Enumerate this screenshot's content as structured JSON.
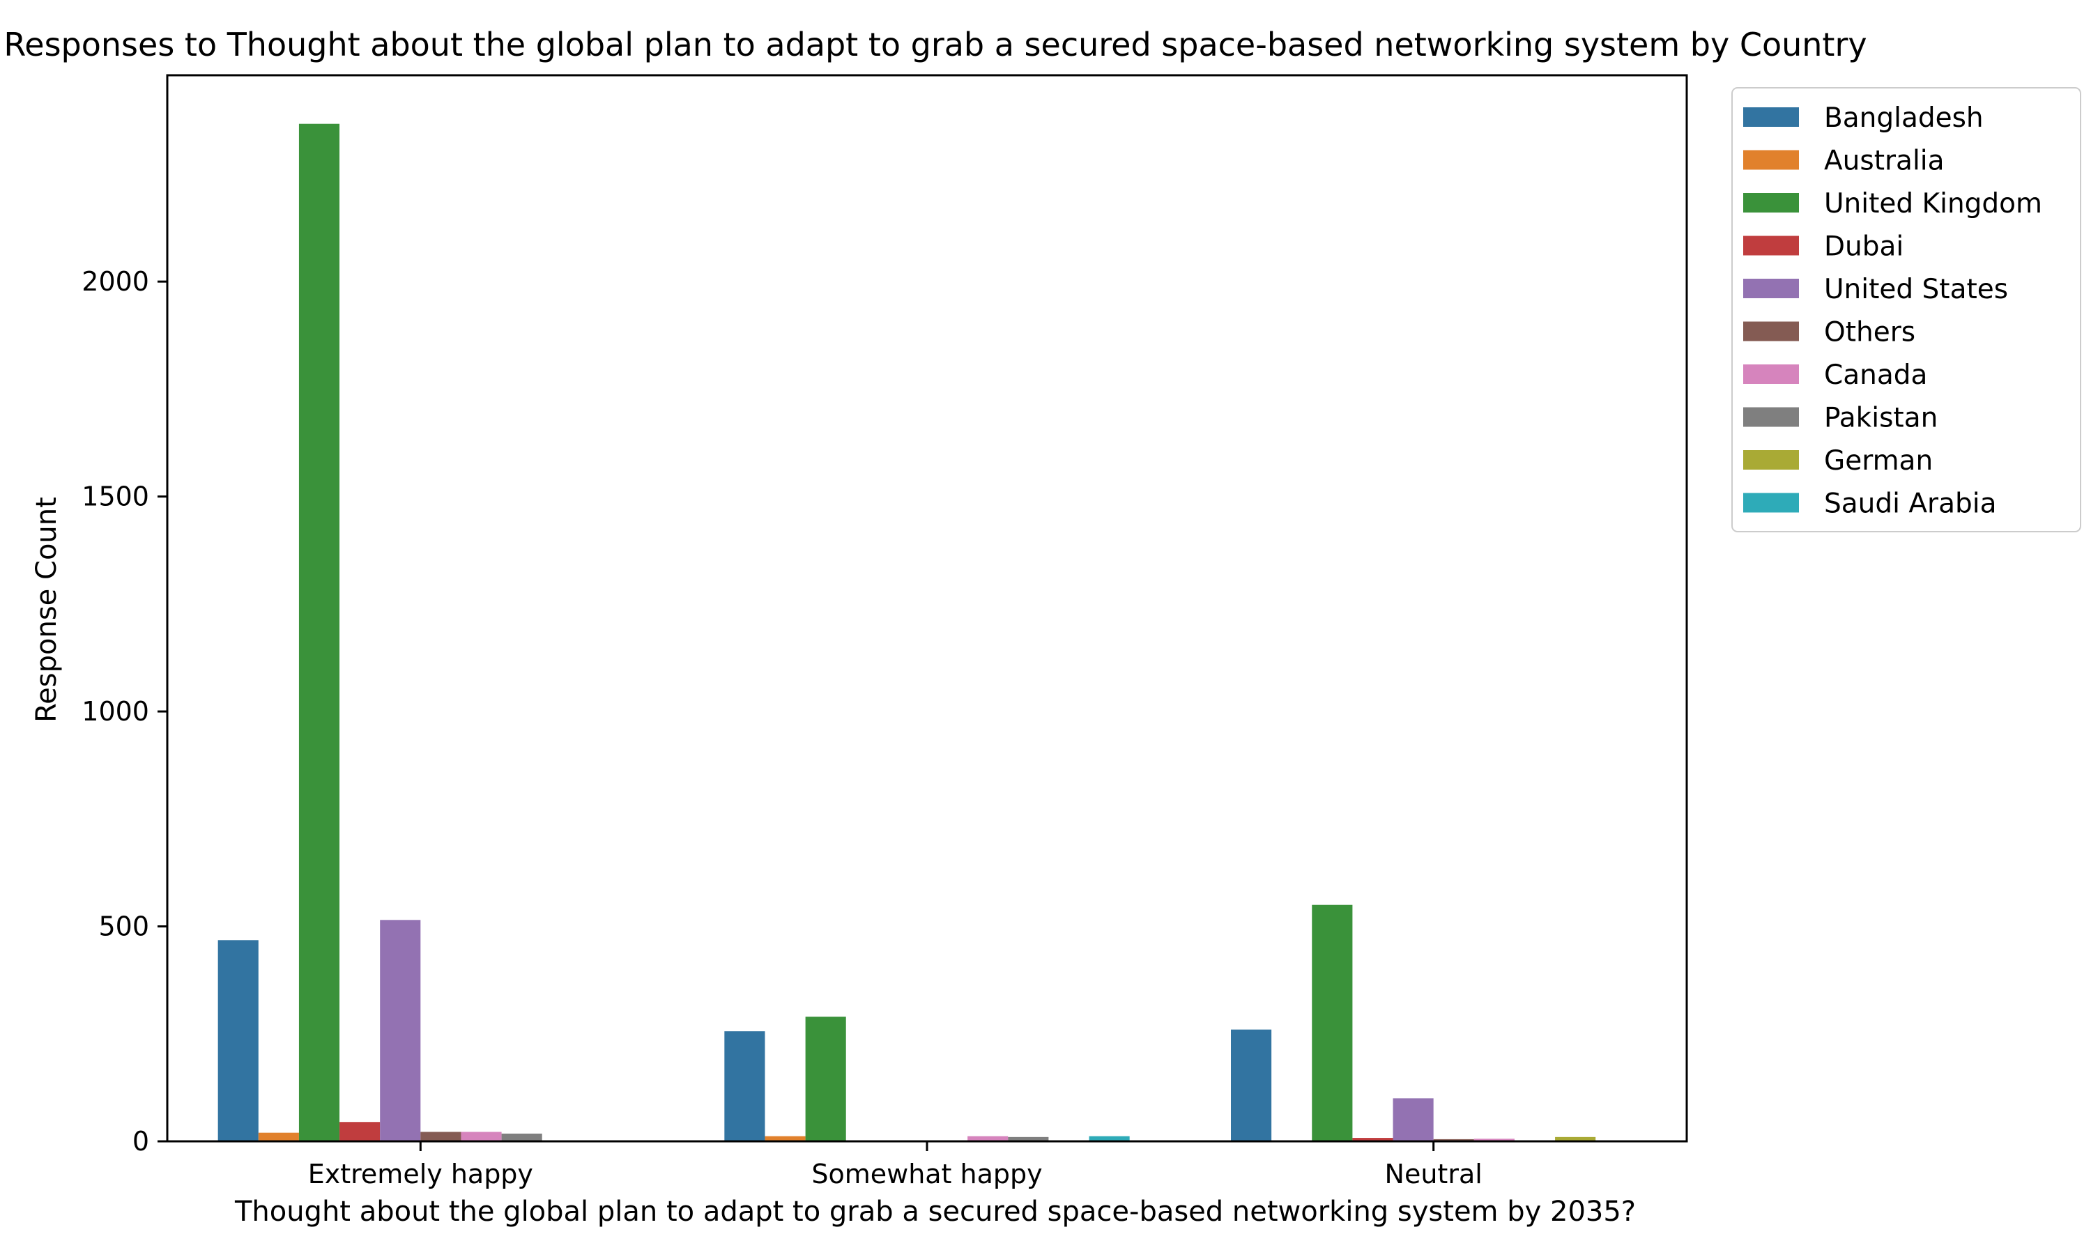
{
  "chart_data": {
    "type": "bar",
    "title": "Responses to Thought about the global plan to adapt to grab a secured space-based networking system by Country",
    "xlabel": "Thought about the global plan to adapt to grab a secured space-based networking system by 2035?",
    "ylabel": "Response Count",
    "categories": [
      "Extremely happy",
      "Somewhat happy",
      "Neutral"
    ],
    "ylim": [
      0,
      2480
    ],
    "yticks": [
      0,
      500,
      1000,
      1500,
      2000
    ],
    "grid": false,
    "legend_position": "outside-top-right",
    "series": [
      {
        "name": "Bangladesh",
        "color": "#3274a1",
        "values": [
          468,
          256,
          260
        ]
      },
      {
        "name": "Australia",
        "color": "#e1812c",
        "values": [
          20,
          12,
          0
        ]
      },
      {
        "name": "United Kingdom",
        "color": "#3a923a",
        "values": [
          2367,
          290,
          550
        ]
      },
      {
        "name": "Dubai",
        "color": "#c03d3e",
        "values": [
          45,
          0,
          8
        ]
      },
      {
        "name": "United States",
        "color": "#9372b2",
        "values": [
          515,
          0,
          100
        ]
      },
      {
        "name": "Others",
        "color": "#845b53",
        "values": [
          22,
          0,
          5
        ]
      },
      {
        "name": "Canada",
        "color": "#d684bd",
        "values": [
          22,
          12,
          6
        ]
      },
      {
        "name": "Pakistan",
        "color": "#7f7f7f",
        "values": [
          18,
          10,
          0
        ]
      },
      {
        "name": "German",
        "color": "#a9aa35",
        "values": [
          0,
          0,
          10
        ]
      },
      {
        "name": "Saudi Arabia",
        "color": "#2eabb8",
        "values": [
          0,
          12,
          0
        ]
      }
    ]
  }
}
